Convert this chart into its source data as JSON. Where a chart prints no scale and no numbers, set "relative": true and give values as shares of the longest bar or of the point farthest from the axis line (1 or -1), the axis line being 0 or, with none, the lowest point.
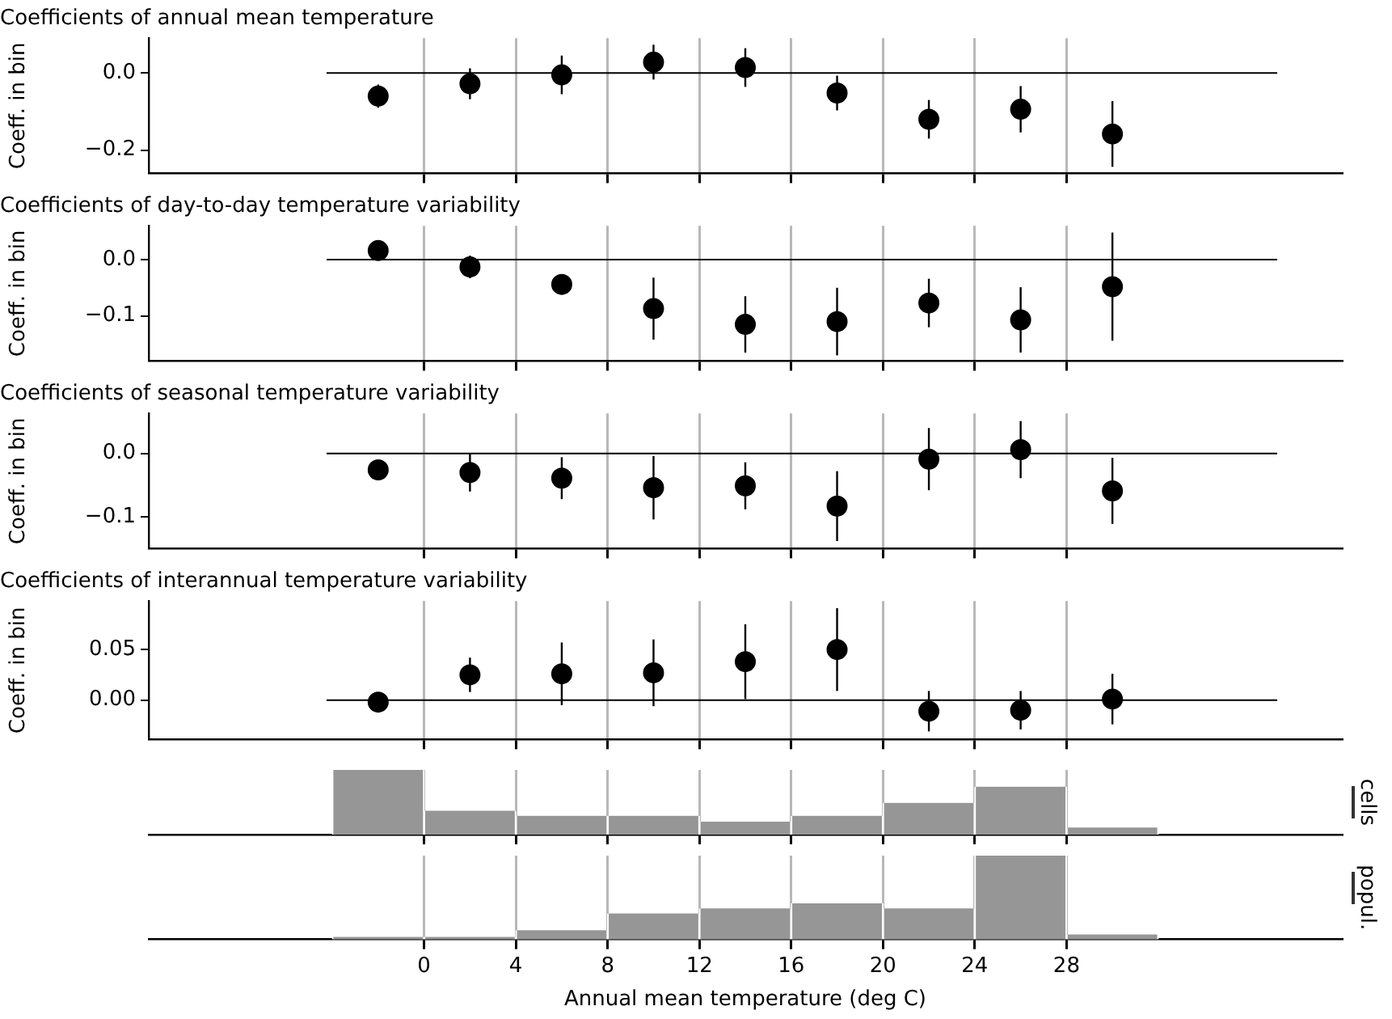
{
  "chart_data": [
    {
      "type": "scatter",
      "title": "Coefficients of annual mean temperature",
      "ylabel": "Coeff. in bin",
      "x": [
        -2,
        2,
        6,
        10,
        14,
        18,
        22,
        26,
        30
      ],
      "values": [
        -0.06,
        -0.028,
        -0.005,
        0.028,
        0.014,
        -0.052,
        -0.12,
        -0.094,
        -0.158
      ],
      "errors": [
        0.03,
        0.04,
        0.05,
        0.045,
        0.05,
        0.045,
        0.05,
        0.06,
        0.085
      ],
      "color": "#000000",
      "marker": "circle",
      "xlim": [
        -12,
        40
      ],
      "xticks": [
        0,
        4,
        8,
        12,
        16,
        20,
        24,
        28
      ],
      "ylim": [
        -0.26,
        0.09
      ],
      "yticks": [
        {
          "value": -0.2,
          "label": "−0.2"
        },
        {
          "value": 0,
          "label": "0.0"
        }
      ],
      "grid": "x",
      "tick_labels": "y",
      "ref_lines": [
        {
          "axis": "y",
          "value": 0,
          "color": "#000000"
        }
      ]
    },
    {
      "type": "scatter",
      "title": "Coefficients of day-to-day temperature variability",
      "ylabel": "Coeff. in bin",
      "x": [
        -2,
        2,
        6,
        10,
        14,
        18,
        22,
        26,
        30
      ],
      "values": [
        0.016,
        -0.013,
        -0.044,
        -0.087,
        -0.115,
        -0.11,
        -0.077,
        -0.107,
        -0.048
      ],
      "errors": [
        0.005,
        0.02,
        0.016,
        0.055,
        0.05,
        0.06,
        0.043,
        0.058,
        0.096
      ],
      "color": "#000000",
      "marker": "circle",
      "xlim": [
        -12,
        40
      ],
      "xticks": [
        0,
        4,
        8,
        12,
        16,
        20,
        24,
        28
      ],
      "ylim": [
        -0.18,
        0.06
      ],
      "yticks": [
        {
          "value": -0.1,
          "label": "−0.1"
        },
        {
          "value": 0,
          "label": "0.0"
        }
      ],
      "grid": "x",
      "tick_labels": "y",
      "ref_lines": [
        {
          "axis": "y",
          "value": 0,
          "color": "#000000"
        }
      ]
    },
    {
      "type": "scatter",
      "title": "Coefficients of seasonal temperature variability",
      "ylabel": "Coeff. in bin",
      "x": [
        -2,
        2,
        6,
        10,
        14,
        18,
        22,
        26,
        30
      ],
      "values": [
        -0.026,
        -0.03,
        -0.039,
        -0.054,
        -0.051,
        -0.083,
        -0.009,
        0.006,
        -0.059
      ],
      "errors": [
        0.005,
        0.03,
        0.033,
        0.05,
        0.037,
        0.055,
        0.049,
        0.045,
        0.052
      ],
      "color": "#000000",
      "marker": "circle",
      "xlim": [
        -12,
        40
      ],
      "xticks": [
        0,
        4,
        8,
        12,
        16,
        20,
        24,
        28
      ],
      "ylim": [
        -0.15,
        0.063
      ],
      "yticks": [
        {
          "value": -0.1,
          "label": "−0.1"
        },
        {
          "value": 0,
          "label": "0.0"
        }
      ],
      "grid": "x",
      "tick_labels": "y",
      "ref_lines": [
        {
          "axis": "y",
          "value": 0,
          "color": "#000000"
        }
      ]
    },
    {
      "type": "scatter",
      "title": "Coefficients of interannual temperature variability",
      "ylabel": "Coeff. in bin",
      "x": [
        -2,
        2,
        6,
        10,
        14,
        18,
        22,
        26,
        30
      ],
      "values": [
        -0.002,
        0.025,
        0.026,
        0.027,
        0.038,
        0.05,
        -0.011,
        -0.01,
        0.001
      ],
      "errors": [
        0.003,
        0.017,
        0.031,
        0.033,
        0.037,
        0.041,
        0.02,
        0.019,
        0.025
      ],
      "color": "#000000",
      "marker": "circle",
      "xlim": [
        -12,
        40
      ],
      "xticks": [
        0,
        4,
        8,
        12,
        16,
        20,
        24,
        28
      ],
      "ylim": [
        -0.039,
        0.098
      ],
      "yticks": [
        {
          "value": 0,
          "label": "0.00"
        },
        {
          "value": 0.05,
          "label": "0.05"
        }
      ],
      "grid": "x",
      "tick_labels": "y",
      "ref_lines": [
        {
          "axis": "y",
          "value": 0,
          "color": "#000000"
        }
      ]
    },
    {
      "type": "bar",
      "ylabel": "cells",
      "x": [
        -2,
        2,
        6,
        10,
        14,
        18,
        22,
        26,
        30
      ],
      "values": [
        1,
        0.37,
        0.29,
        0.29,
        0.2,
        0.29,
        0.49,
        0.74,
        0.11
      ],
      "relative": true,
      "color": "#969696",
      "xlim": [
        -12,
        40
      ],
      "xticks": [
        0,
        4,
        8,
        12,
        16,
        20,
        24,
        28
      ],
      "grid": "x",
      "tick_labels": false
    },
    {
      "type": "bar",
      "ylabel": "popul.",
      "xlabel": "Annual mean temperature (deg C)",
      "x": [
        -2,
        2,
        6,
        10,
        14,
        18,
        22,
        26,
        30
      ],
      "values": [
        0.03,
        0.03,
        0.11,
        0.31,
        0.37,
        0.43,
        0.37,
        1,
        0.06
      ],
      "relative": true,
      "color": "#969696",
      "xlim": [
        -12,
        40
      ],
      "xticks": [
        0,
        4,
        8,
        12,
        16,
        20,
        24,
        28
      ],
      "grid": "x",
      "tick_labels": "x"
    }
  ]
}
